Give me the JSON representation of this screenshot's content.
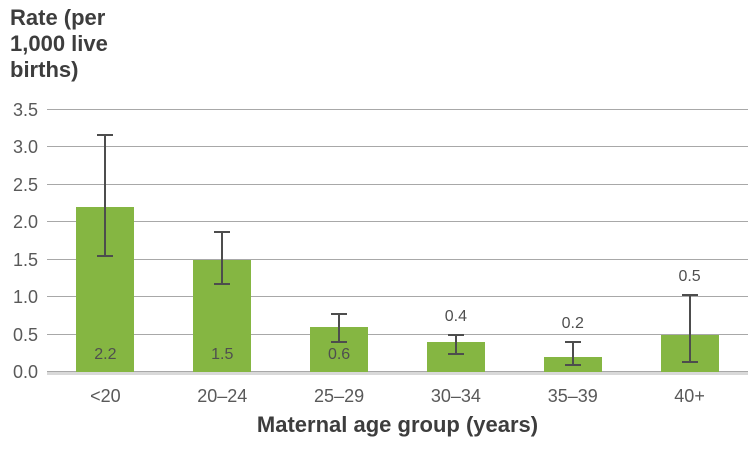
{
  "chart_data": {
    "type": "bar",
    "title": "",
    "ylabel": "Rate (per 1,000 live births)",
    "ylabel_lines": [
      "Rate (per",
      "1,000 live",
      "births)"
    ],
    "xlabel": "Maternal age group (years)",
    "categories": [
      "<20",
      "20–24",
      "25–29",
      "30–34",
      "35–39",
      "40+"
    ],
    "values": [
      2.2,
      1.5,
      0.6,
      0.4,
      0.2,
      0.5
    ],
    "data_labels": [
      "2.2",
      "1.5",
      "0.6",
      "0.4",
      "0.2",
      "0.5"
    ],
    "label_position": [
      "inside",
      "inside",
      "inside",
      "above",
      "above",
      "above"
    ],
    "error_low": [
      1.55,
      1.18,
      0.4,
      0.24,
      0.09,
      0.14
    ],
    "error_high": [
      3.17,
      1.87,
      0.78,
      0.5,
      0.4,
      1.03
    ],
    "ylim": [
      0,
      3.5
    ],
    "yticks": [
      0.0,
      0.5,
      1.0,
      1.5,
      2.0,
      2.5,
      3.0,
      3.5
    ],
    "ytick_format_decimals": 1,
    "grid": true,
    "legend": "none",
    "colors": {
      "bar": "#85b642",
      "error_bar": "#4d4d4d",
      "gridline": "#a8a8a8",
      "baseline": "#d9d9d9",
      "tick_text": "#595959",
      "axis_title_text": "#3d3d3d",
      "value_label_text": "#4f4f4f",
      "background": "#ffffff"
    }
  }
}
